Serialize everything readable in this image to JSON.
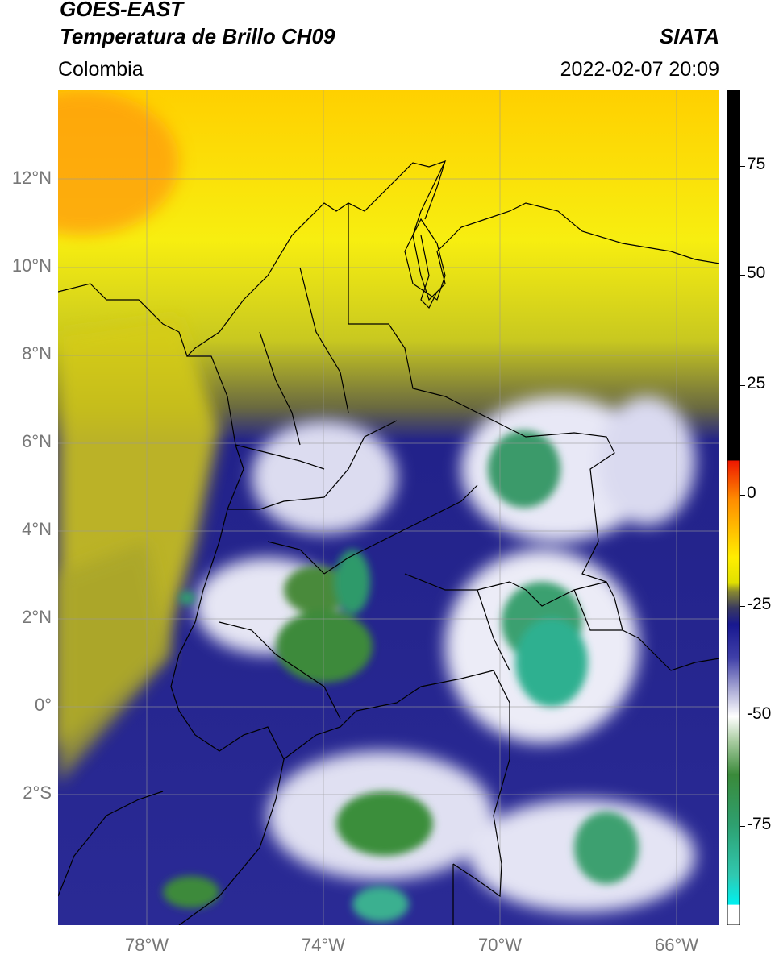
{
  "header": {
    "satellite": "GOES-EAST",
    "product": "Temperatura de Brillo CH09",
    "region": "Colombia",
    "agency": "SIATA",
    "datetime": "2022-02-07 20:09"
  },
  "map": {
    "lat_labels": [
      "12°N",
      "10°N",
      "8°N",
      "6°N",
      "4°N",
      "2°N",
      "0°",
      "2°S"
    ],
    "lon_labels": [
      "78°W",
      "74°W",
      "70°W",
      "66°W"
    ],
    "extent": {
      "lon_min": -80,
      "lon_max": -65,
      "lat_min": -5.2,
      "lat_max": 14
    }
  },
  "colorbar": {
    "tick_labels": [
      "75",
      "50",
      "25",
      "0",
      "-25",
      "-50",
      "-75"
    ],
    "range": [
      -95,
      90
    ],
    "colors": {
      "black": "#000000",
      "red": "#ee2200",
      "orange": "#ff9a00",
      "yellow": "#ffff00",
      "olive": "#9a9a20",
      "navy": "#1a1a8a",
      "white": "#ffffff",
      "green": "#2e8b3a",
      "teal": "#20c0a0",
      "cyan": "#00e8e8"
    }
  }
}
